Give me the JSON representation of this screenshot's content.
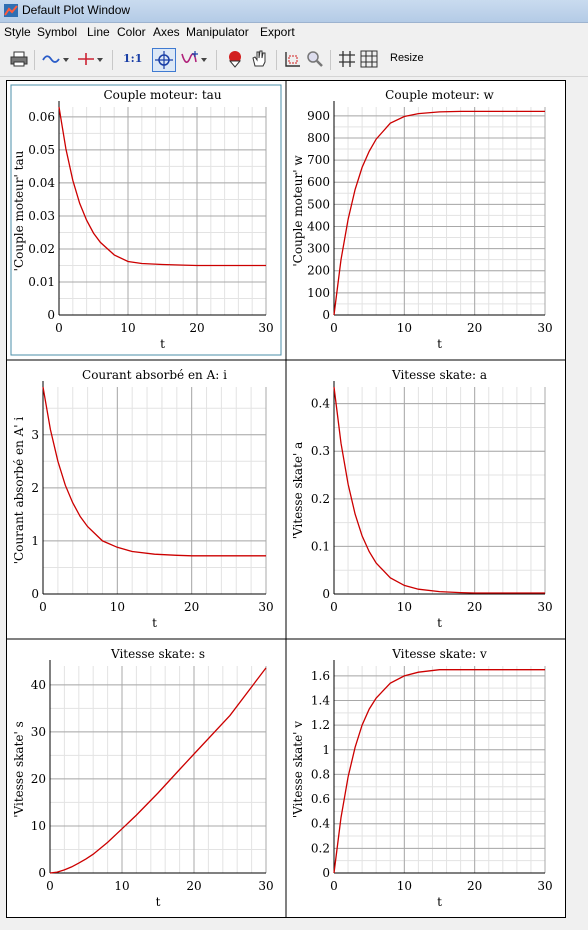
{
  "window": {
    "title": "Default Plot Window"
  },
  "menu": [
    "Style",
    "Symbol",
    "Line",
    "Color",
    "Axes",
    "Manipulator",
    "Export"
  ],
  "toolbar": {
    "ratio_label": "1:1",
    "resize_label": "Resize",
    "icons": [
      "print-icon",
      "line-style-icon",
      "symbol-style-icon",
      "ratio-icon",
      "point-probe-icon",
      "trace-icon",
      "pan-icon",
      "hand-icon",
      "zoom-box-icon",
      "zoom-icon",
      "grid-icon",
      "grid-both-icon"
    ]
  },
  "colors": {
    "curve": "#cc0000",
    "grid": "#a8a8a8",
    "grid_minor": "#e3e3e3",
    "selected_border": "#4b8fa8"
  },
  "chart_data": [
    {
      "type": "line",
      "title": "Couple moteur: tau",
      "xlabel": "t",
      "ylabel": "'Couple moteur' tau",
      "xlim": [
        0,
        30
      ],
      "ylim": [
        0,
        0.063
      ],
      "xticks": [
        0,
        10,
        20,
        30
      ],
      "yticks": [
        0,
        0.01,
        0.02,
        0.03,
        0.04,
        0.05,
        0.06
      ],
      "ytick_labels": [
        "0",
        "0.01",
        "0.02",
        "0.03",
        "0.04",
        "0.05",
        "0.06"
      ],
      "x": [
        0,
        1,
        2,
        3,
        4,
        5,
        6,
        8,
        10,
        12,
        15,
        18,
        20,
        25,
        30
      ],
      "y": [
        0.063,
        0.0503,
        0.0408,
        0.0338,
        0.0287,
        0.0248,
        0.022,
        0.0182,
        0.0162,
        0.0156,
        0.0153,
        0.0151,
        0.015,
        0.015,
        0.015
      ],
      "selected": true
    },
    {
      "type": "line",
      "title": "Couple moteur: w",
      "xlabel": "t",
      "ylabel": "'Couple moteur' w",
      "xlim": [
        0,
        30
      ],
      "ylim": [
        0,
        940
      ],
      "xticks": [
        0,
        10,
        20,
        30
      ],
      "yticks": [
        0,
        100,
        200,
        300,
        400,
        500,
        600,
        700,
        800,
        900
      ],
      "ytick_labels": [
        "0",
        "100",
        "200",
        "300",
        "400",
        "500",
        "600",
        "700",
        "800",
        "900"
      ],
      "x": [
        0,
        1,
        2,
        3,
        4,
        5,
        6,
        8,
        10,
        12,
        15,
        18,
        20,
        25,
        30
      ],
      "y": [
        0,
        250,
        432,
        567,
        667,
        740,
        795,
        867,
        897,
        910,
        918,
        920,
        920,
        920,
        920
      ]
    },
    {
      "type": "line",
      "title": "Courant absorbé en A: i",
      "xlabel": "t",
      "ylabel": "'Courant absorbé en A' i",
      "xlim": [
        0,
        30
      ],
      "ylim": [
        0,
        3.9
      ],
      "xticks": [
        0,
        10,
        20,
        30
      ],
      "yticks": [
        0,
        1,
        2,
        3
      ],
      "ytick_labels": [
        "0",
        "1",
        "2",
        "3"
      ],
      "x": [
        0,
        1,
        2,
        3,
        4,
        5,
        6,
        8,
        10,
        12,
        15,
        18,
        20,
        25,
        30
      ],
      "y": [
        3.9,
        3.1,
        2.5,
        2.05,
        1.72,
        1.46,
        1.27,
        1.0,
        0.88,
        0.8,
        0.75,
        0.73,
        0.72,
        0.72,
        0.72
      ]
    },
    {
      "type": "line",
      "title": "Vitesse skate: a",
      "xlabel": "t",
      "ylabel": "'Vitesse skate' a",
      "xlim": [
        0,
        30
      ],
      "ylim": [
        0,
        0.435
      ],
      "xticks": [
        0,
        10,
        20,
        30
      ],
      "yticks": [
        0,
        0.1,
        0.2,
        0.3,
        0.4
      ],
      "ytick_labels": [
        "0",
        "0.1",
        "0.2",
        "0.3",
        "0.4"
      ],
      "x": [
        0,
        1,
        2,
        3,
        4,
        5,
        6,
        8,
        10,
        12,
        15,
        18,
        20,
        25,
        30
      ],
      "y": [
        0.435,
        0.317,
        0.231,
        0.168,
        0.122,
        0.089,
        0.065,
        0.034,
        0.018,
        0.01,
        0.005,
        0.003,
        0.002,
        0.002,
        0.002
      ]
    },
    {
      "type": "line",
      "title": "Vitesse skate: s",
      "xlabel": "t",
      "ylabel": "'Vitesse skate' s",
      "xlim": [
        0,
        30
      ],
      "ylim": [
        0,
        44
      ],
      "xticks": [
        0,
        10,
        20,
        30
      ],
      "yticks": [
        0,
        10,
        20,
        30,
        40
      ],
      "ytick_labels": [
        "0",
        "10",
        "20",
        "30",
        "40"
      ],
      "x": [
        0,
        1,
        2,
        3,
        4,
        5,
        6,
        8,
        10,
        12,
        15,
        18,
        20,
        25,
        30
      ],
      "y": [
        0,
        0.2,
        0.65,
        1.3,
        2.1,
        3.0,
        4.0,
        6.5,
        9.4,
        12.3,
        17.0,
        22.0,
        25.3,
        33.5,
        43.6
      ]
    },
    {
      "type": "line",
      "title": "Vitesse skate: v",
      "xlabel": "t",
      "ylabel": "'Vitesse skate' v",
      "xlim": [
        0,
        30
      ],
      "ylim": [
        0,
        1.68
      ],
      "xticks": [
        0,
        10,
        20,
        30
      ],
      "yticks": [
        0,
        0.2,
        0.4,
        0.6,
        0.8,
        1.0,
        1.2,
        1.4,
        1.6
      ],
      "ytick_labels": [
        "0",
        "0.2",
        "0.4",
        "0.6",
        "0.8",
        "1",
        "1.2",
        "1.4",
        "1.6"
      ],
      "x": [
        0,
        1,
        2,
        3,
        4,
        5,
        6,
        8,
        10,
        12,
        15,
        18,
        20,
        25,
        30
      ],
      "y": [
        0,
        0.45,
        0.78,
        1.02,
        1.2,
        1.33,
        1.42,
        1.54,
        1.6,
        1.63,
        1.65,
        1.65,
        1.65,
        1.65,
        1.65
      ]
    }
  ]
}
